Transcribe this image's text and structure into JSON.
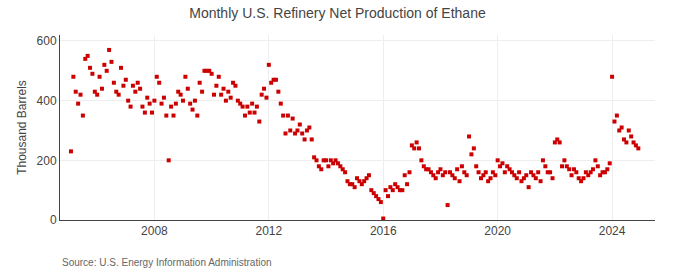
{
  "chart_data": {
    "type": "scatter",
    "title": "Monthly U.S. Refinery Net Production of Ethane",
    "ylabel": "Thousand Barrels",
    "annotations": [
      "Source: U.S. Energy Information Administration"
    ],
    "color": "#cc0000",
    "marker": "square",
    "grid": true,
    "xlim": [
      2004.7,
      2025.5
    ],
    "xticks": [
      2008,
      2012,
      2016,
      2020,
      2024
    ],
    "ylim": [
      0,
      620
    ],
    "yticks": [
      0,
      200,
      400,
      600
    ],
    "x": [
      2005.083,
      2005.167,
      2005.25,
      2005.333,
      2005.417,
      2005.5,
      2005.583,
      2005.667,
      2005.75,
      2005.833,
      2005.917,
      2006.0,
      2006.083,
      2006.167,
      2006.25,
      2006.333,
      2006.417,
      2006.5,
      2006.583,
      2006.667,
      2006.75,
      2006.833,
      2006.917,
      2007.0,
      2007.083,
      2007.167,
      2007.25,
      2007.333,
      2007.417,
      2007.5,
      2007.583,
      2007.667,
      2007.75,
      2007.833,
      2007.917,
      2008.0,
      2008.083,
      2008.167,
      2008.25,
      2008.333,
      2008.417,
      2008.5,
      2008.583,
      2008.667,
      2008.75,
      2008.833,
      2008.917,
      2009.0,
      2009.083,
      2009.167,
      2009.25,
      2009.333,
      2009.417,
      2009.5,
      2009.583,
      2009.667,
      2009.75,
      2009.833,
      2009.917,
      2010.0,
      2010.083,
      2010.167,
      2010.25,
      2010.333,
      2010.417,
      2010.5,
      2010.583,
      2010.667,
      2010.75,
      2010.833,
      2010.917,
      2011.0,
      2011.083,
      2011.167,
      2011.25,
      2011.333,
      2011.417,
      2011.5,
      2011.583,
      2011.667,
      2011.75,
      2011.833,
      2011.917,
      2012.0,
      2012.083,
      2012.167,
      2012.25,
      2012.333,
      2012.417,
      2012.5,
      2012.583,
      2012.667,
      2012.75,
      2012.833,
      2012.917,
      2013.0,
      2013.083,
      2013.167,
      2013.25,
      2013.333,
      2013.417,
      2013.5,
      2013.583,
      2013.667,
      2013.75,
      2013.833,
      2013.917,
      2014.0,
      2014.083,
      2014.167,
      2014.25,
      2014.333,
      2014.417,
      2014.5,
      2014.583,
      2014.667,
      2014.75,
      2014.833,
      2014.917,
      2015.0,
      2015.083,
      2015.167,
      2015.25,
      2015.333,
      2015.417,
      2015.5,
      2015.583,
      2015.667,
      2015.75,
      2015.833,
      2015.917,
      2016.0,
      2016.083,
      2016.167,
      2016.25,
      2016.333,
      2016.417,
      2016.5,
      2016.583,
      2016.667,
      2016.75,
      2016.833,
      2016.917,
      2017.0,
      2017.083,
      2017.167,
      2017.25,
      2017.333,
      2017.417,
      2017.5,
      2017.583,
      2017.667,
      2017.75,
      2017.833,
      2017.917,
      2018.0,
      2018.083,
      2018.167,
      2018.25,
      2018.333,
      2018.417,
      2018.5,
      2018.583,
      2018.667,
      2018.75,
      2018.833,
      2018.917,
      2019.0,
      2019.083,
      2019.167,
      2019.25,
      2019.333,
      2019.417,
      2019.5,
      2019.583,
      2019.667,
      2019.75,
      2019.833,
      2019.917,
      2020.0,
      2020.083,
      2020.167,
      2020.25,
      2020.333,
      2020.417,
      2020.5,
      2020.583,
      2020.667,
      2020.75,
      2020.833,
      2020.917,
      2021.0,
      2021.083,
      2021.167,
      2021.25,
      2021.333,
      2021.417,
      2021.5,
      2021.583,
      2021.667,
      2021.75,
      2021.833,
      2021.917,
      2022.0,
      2022.083,
      2022.167,
      2022.25,
      2022.333,
      2022.417,
      2022.5,
      2022.583,
      2022.667,
      2022.75,
      2022.833,
      2022.917,
      2023.0,
      2023.083,
      2023.167,
      2023.25,
      2023.333,
      2023.417,
      2023.5,
      2023.583,
      2023.667,
      2023.75,
      2023.833,
      2023.917,
      2024.0,
      2024.083,
      2024.167,
      2024.25,
      2024.333,
      2024.417,
      2024.5,
      2024.583,
      2024.667,
      2024.75,
      2024.833,
      2024.917
    ],
    "values": [
      230,
      480,
      430,
      390,
      420,
      350,
      540,
      550,
      510,
      490,
      430,
      420,
      480,
      440,
      520,
      500,
      570,
      530,
      460,
      430,
      420,
      510,
      450,
      470,
      400,
      380,
      450,
      430,
      460,
      440,
      380,
      360,
      410,
      390,
      360,
      400,
      480,
      460,
      390,
      410,
      350,
      200,
      380,
      350,
      390,
      430,
      420,
      400,
      480,
      440,
      390,
      370,
      400,
      350,
      460,
      430,
      500,
      500,
      500,
      490,
      420,
      450,
      480,
      420,
      440,
      400,
      430,
      410,
      460,
      450,
      400,
      390,
      380,
      350,
      380,
      360,
      390,
      360,
      380,
      330,
      420,
      440,
      410,
      520,
      460,
      470,
      470,
      430,
      390,
      350,
      290,
      350,
      300,
      340,
      290,
      300,
      320,
      290,
      270,
      300,
      310,
      270,
      210,
      200,
      180,
      170,
      200,
      200,
      180,
      200,
      190,
      200,
      190,
      180,
      170,
      160,
      130,
      120,
      120,
      110,
      140,
      130,
      120,
      130,
      140,
      150,
      100,
      90,
      80,
      70,
      60,
      5,
      100,
      80,
      110,
      100,
      120,
      110,
      100,
      100,
      150,
      120,
      160,
      250,
      240,
      260,
      240,
      200,
      180,
      170,
      170,
      160,
      150,
      140,
      160,
      170,
      150,
      160,
      50,
      160,
      150,
      140,
      170,
      130,
      180,
      160,
      150,
      280,
      220,
      240,
      180,
      160,
      140,
      150,
      160,
      130,
      140,
      160,
      150,
      200,
      180,
      190,
      160,
      180,
      170,
      160,
      150,
      140,
      160,
      130,
      140,
      150,
      110,
      160,
      150,
      140,
      160,
      130,
      200,
      180,
      160,
      160,
      140,
      260,
      270,
      260,
      180,
      200,
      180,
      170,
      150,
      170,
      160,
      140,
      130,
      140,
      160,
      150,
      160,
      170,
      200,
      180,
      150,
      160,
      160,
      170,
      190,
      480,
      330,
      350,
      300,
      310,
      270,
      260,
      300,
      280,
      260,
      250,
      240
    ]
  }
}
